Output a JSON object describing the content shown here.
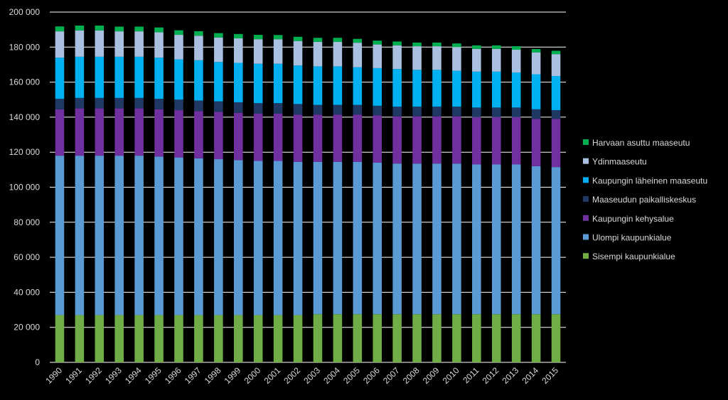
{
  "chart_data": {
    "type": "bar",
    "stacked": true,
    "title": "",
    "xlabel": "",
    "ylabel": "",
    "ylim": [
      0,
      200000
    ],
    "yticks": [
      0,
      20000,
      40000,
      60000,
      80000,
      100000,
      120000,
      140000,
      160000,
      180000,
      200000
    ],
    "ytick_labels": [
      "0",
      "20 000",
      "40 000",
      "60 000",
      "80 000",
      "100 000",
      "120 000",
      "140 000",
      "160 000",
      "180 000",
      "200 000"
    ],
    "grid": "horizontal",
    "legend_position": "right",
    "background": "#000000",
    "categories": [
      "1990",
      "1991",
      "1992",
      "1993",
      "1994",
      "1995",
      "1996",
      "1997",
      "1998",
      "1999",
      "2000",
      "2001",
      "2002",
      "2003",
      "2004",
      "2005",
      "2006",
      "2007",
      "2008",
      "2009",
      "2010",
      "2011",
      "2012",
      "2013",
      "2014",
      "2015"
    ],
    "series": [
      {
        "name": "Sisempi kaupunkialue",
        "color": "#70ad47",
        "values": [
          27000,
          27000,
          27000,
          27000,
          27000,
          27000,
          27000,
          27000,
          27000,
          27000,
          27000,
          27000,
          27000,
          27500,
          27500,
          27500,
          27500,
          27500,
          27500,
          27500,
          27500,
          27500,
          27500,
          27500,
          27500,
          27500
        ]
      },
      {
        "name": "Ulompi kaupunkialue",
        "color": "#5b9bd5",
        "values": [
          91000,
          91000,
          91000,
          91000,
          91000,
          90500,
          90000,
          89500,
          89000,
          88500,
          88000,
          88000,
          87500,
          87000,
          87000,
          87000,
          86500,
          86000,
          86000,
          86000,
          86000,
          85500,
          85500,
          85500,
          84500,
          84000
        ]
      },
      {
        "name": "Kaupungin kehysalue",
        "color": "#7030a0",
        "values": [
          26500,
          27000,
          27000,
          27000,
          27000,
          27000,
          27000,
          27000,
          27000,
          27000,
          27000,
          27000,
          27000,
          27000,
          27000,
          27000,
          27000,
          27000,
          27000,
          27000,
          27000,
          27000,
          27000,
          27000,
          27000,
          27500
        ]
      },
      {
        "name": "Maaseudun paikalliskeskus",
        "color": "#1f3864",
        "values": [
          6000,
          6000,
          6000,
          6000,
          6000,
          6000,
          6000,
          6000,
          6000,
          6000,
          6000,
          6000,
          6000,
          5500,
          5500,
          5500,
          5500,
          5500,
          5500,
          5500,
          5500,
          5500,
          5500,
          5500,
          5500,
          5000
        ]
      },
      {
        "name": "Kaupungin läheinen maaseutu",
        "color": "#00b0f0",
        "values": [
          23500,
          23500,
          23500,
          23500,
          23500,
          23500,
          23000,
          23000,
          22500,
          22500,
          22500,
          22500,
          22000,
          22000,
          22000,
          21500,
          21500,
          21500,
          21000,
          21000,
          20500,
          20500,
          20500,
          20000,
          20000,
          19500
        ]
      },
      {
        "name": "Ydinmaaseutu",
        "color": "#a9c0e0",
        "values": [
          15000,
          15000,
          15000,
          14500,
          14500,
          14500,
          14000,
          14000,
          14000,
          14000,
          14000,
          14000,
          14000,
          14000,
          14000,
          14000,
          13500,
          13500,
          13500,
          13500,
          13500,
          13000,
          13000,
          13000,
          12500,
          12500
        ]
      },
      {
        "name": "Harvaan asuttu maaseutu",
        "color": "#00b050",
        "values": [
          2800,
          2800,
          2800,
          2700,
          2700,
          2700,
          2600,
          2600,
          2500,
          2500,
          2500,
          2400,
          2400,
          2300,
          2300,
          2200,
          2200,
          2200,
          2100,
          2100,
          2100,
          2000,
          2000,
          2000,
          1900,
          1900
        ]
      }
    ]
  }
}
